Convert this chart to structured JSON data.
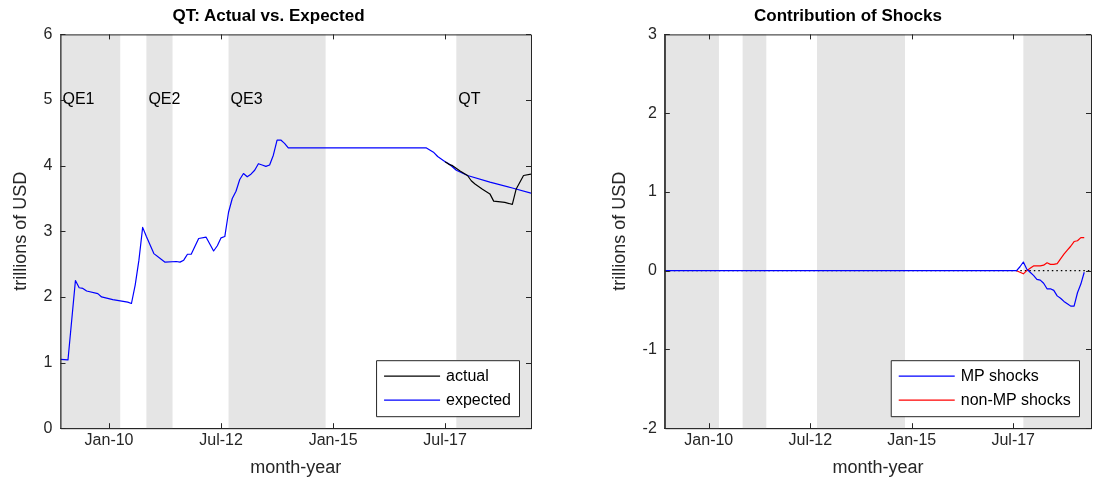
{
  "chart_data": [
    {
      "type": "line",
      "title": "QT: Actual vs. Expected",
      "xlabel": "month-year",
      "ylabel": "trillions of USD",
      "xlim": [
        "2008-12",
        "2019-06"
      ],
      "xticks": [
        {
          "value": "2010-01",
          "label": "Jan-10"
        },
        {
          "value": "2012-07",
          "label": "Jul-12"
        },
        {
          "value": "2015-01",
          "label": "Jan-15"
        },
        {
          "value": "2017-07",
          "label": "Jul-17"
        }
      ],
      "ylim": [
        0,
        6
      ],
      "yticks": [
        0,
        1,
        2,
        3,
        4,
        5,
        6
      ],
      "grid": false,
      "legend": "bottom right",
      "line_style": "solid",
      "marker": "none",
      "bands": [
        {
          "axis": "x",
          "from": "2008-12",
          "to": "2010-04",
          "label": "QE1",
          "color": "#e5e5e5"
        },
        {
          "axis": "x",
          "from": "2010-11",
          "to": "2011-06",
          "label": "QE2",
          "color": "#e5e5e5"
        },
        {
          "axis": "x",
          "from": "2012-09",
          "to": "2014-11",
          "label": "QE3",
          "color": "#e5e5e5"
        },
        {
          "axis": "x",
          "from": "2017-10",
          "to": "2019-06",
          "label": "QT",
          "color": "#e5e5e5"
        }
      ],
      "series": [
        {
          "name": "actual",
          "color": "#000000",
          "x": [
            "2017-07",
            "2017-08",
            "2017-09",
            "2017-11",
            "2018-01",
            "2018-02",
            "2018-03",
            "2018-05",
            "2018-07",
            "2018-08",
            "2018-11",
            "2019-01",
            "2019-02",
            "2019-04",
            "2019-06"
          ],
          "values": [
            4.06,
            4.02,
            4.0,
            3.92,
            3.85,
            3.77,
            3.72,
            3.64,
            3.57,
            3.46,
            3.44,
            3.41,
            3.64,
            3.85,
            3.87
          ]
        },
        {
          "name": "expected",
          "color": "#0000ff",
          "x": [
            "2008-12",
            "2009-02",
            "2009-04",
            "2009-05",
            "2009-06",
            "2009-07",
            "2009-10",
            "2009-11",
            "2010-02",
            "2010-06",
            "2010-07",
            "2010-08",
            "2010-09",
            "2010-10",
            "2010-11",
            "2011-01",
            "2011-04",
            "2011-07",
            "2011-08",
            "2011-09",
            "2011-10",
            "2011-11",
            "2012-01",
            "2012-03",
            "2012-05",
            "2012-06",
            "2012-07",
            "2012-08",
            "2012-09",
            "2012-10",
            "2012-11",
            "2012-12",
            "2013-01",
            "2013-02",
            "2013-03",
            "2013-04",
            "2013-05",
            "2013-06",
            "2013-07",
            "2013-08",
            "2013-09",
            "2013-10",
            "2013-11",
            "2013-12",
            "2014-01",
            "2017-02",
            "2017-04",
            "2017-05",
            "2017-07",
            "2017-08",
            "2017-10",
            "2018-01",
            "2018-07",
            "2019-01",
            "2019-06"
          ],
          "values": [
            1.05,
            1.04,
            2.25,
            2.14,
            2.13,
            2.09,
            2.05,
            2.0,
            1.96,
            1.92,
            1.9,
            2.18,
            2.56,
            3.06,
            2.92,
            2.66,
            2.53,
            2.54,
            2.53,
            2.56,
            2.65,
            2.65,
            2.89,
            2.91,
            2.7,
            2.78,
            2.9,
            2.92,
            3.29,
            3.5,
            3.61,
            3.79,
            3.88,
            3.83,
            3.87,
            3.93,
            4.03,
            4.01,
            3.99,
            4.01,
            4.16,
            4.39,
            4.39,
            4.34,
            4.27,
            4.27,
            4.2,
            4.14,
            4.06,
            4.03,
            3.93,
            3.85,
            3.75,
            3.66,
            3.58
          ]
        }
      ]
    },
    {
      "type": "line",
      "title": "Contribution of Shocks",
      "xlabel": "month-year",
      "ylabel": "trillions of USD",
      "xlim": [
        "2008-12",
        "2019-06"
      ],
      "xticks": [
        {
          "value": "2010-01",
          "label": "Jan-10"
        },
        {
          "value": "2012-07",
          "label": "Jul-12"
        },
        {
          "value": "2015-01",
          "label": "Jan-15"
        },
        {
          "value": "2017-07",
          "label": "Jul-17"
        }
      ],
      "ylim": [
        -2,
        3
      ],
      "yticks": [
        -2,
        -1,
        0,
        1,
        2,
        3
      ],
      "grid": false,
      "legend": "bottom right",
      "line_style": "solid",
      "marker": "none",
      "bands": [
        {
          "axis": "x",
          "from": "2008-12",
          "to": "2010-04",
          "color": "#e5e5e5"
        },
        {
          "axis": "x",
          "from": "2010-11",
          "to": "2011-06",
          "color": "#e5e5e5"
        },
        {
          "axis": "x",
          "from": "2012-09",
          "to": "2014-11",
          "color": "#e5e5e5"
        },
        {
          "axis": "x",
          "from": "2017-10",
          "to": "2019-06",
          "color": "#e5e5e5"
        }
      ],
      "ref_lines": [
        {
          "axis": "y",
          "value": 0,
          "color": "#000000",
          "line_style": "dotted"
        }
      ],
      "series": [
        {
          "name": "MP shocks",
          "color": "#0000ff",
          "x": [
            "2008-12",
            "2017-08",
            "2017-09",
            "2017-10",
            "2017-11",
            "2017-12",
            "2018-01",
            "2018-02",
            "2018-03",
            "2018-04",
            "2018-05",
            "2018-06",
            "2018-07",
            "2018-08",
            "2018-09",
            "2018-10",
            "2018-11",
            "2018-12",
            "2019-01",
            "2019-02",
            "2019-03",
            "2019-04"
          ],
          "values": [
            0,
            0,
            0.05,
            0.11,
            0.02,
            -0.02,
            -0.06,
            -0.11,
            -0.12,
            -0.16,
            -0.23,
            -0.23,
            -0.25,
            -0.32,
            -0.35,
            -0.39,
            -0.42,
            -0.45,
            -0.45,
            -0.28,
            -0.17,
            -0.02
          ]
        },
        {
          "name": "non-MP shocks",
          "color": "#ff0000",
          "x": [
            "2017-08",
            "2017-09",
            "2017-10",
            "2017-11",
            "2017-12",
            "2018-01",
            "2018-02",
            "2018-03",
            "2018-04",
            "2018-05",
            "2018-06",
            "2018-07",
            "2018-08",
            "2018-09",
            "2018-10",
            "2018-11",
            "2018-12",
            "2019-01",
            "2019-02",
            "2019-03",
            "2019-04"
          ],
          "values": [
            0,
            -0.02,
            -0.04,
            0,
            0.03,
            0.06,
            0.06,
            0.06,
            0.07,
            0.1,
            0.08,
            0.08,
            0.09,
            0.15,
            0.21,
            0.26,
            0.31,
            0.37,
            0.38,
            0.42,
            0.42
          ]
        }
      ]
    }
  ]
}
